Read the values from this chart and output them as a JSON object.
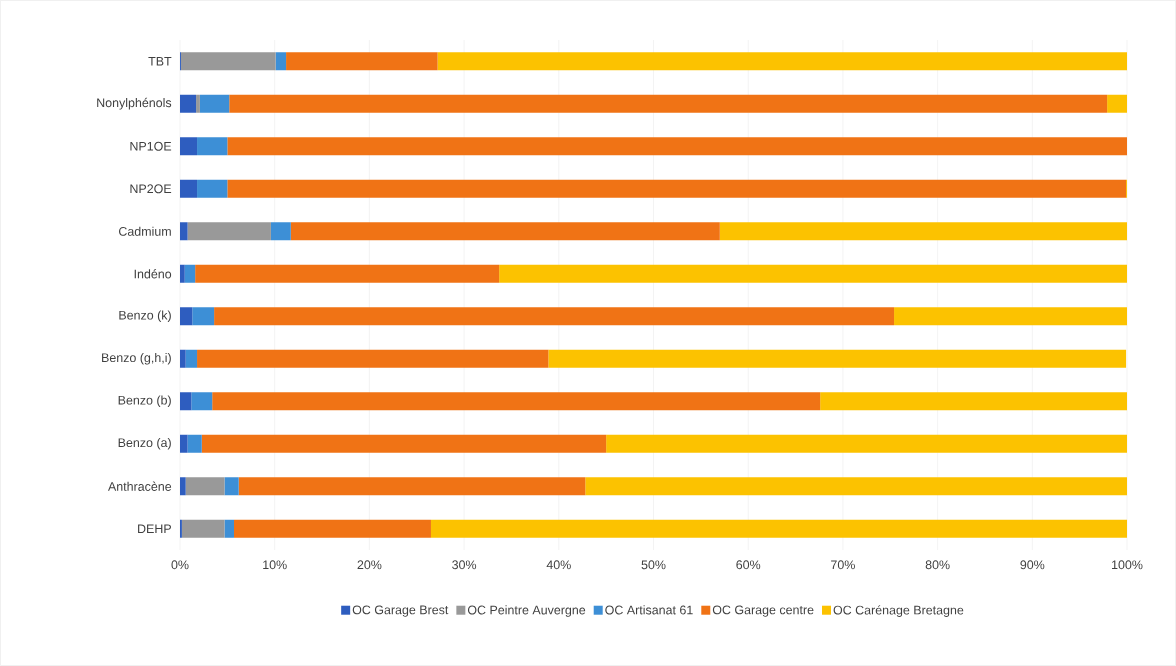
{
  "chart_data": {
    "type": "bar",
    "orientation": "horizontal",
    "stacked": true,
    "categories": [
      "TBT",
      "Nonylphénols",
      "NP1OE",
      "NP2OE",
      "Cadmium",
      "Indéno",
      "Benzo (k)",
      "Benzo (g,h,i)",
      "Benzo (b)",
      "Benzo (a)",
      "Anthracène",
      "DEHP"
    ],
    "series": [
      {
        "name": "OC Garage Brest",
        "color": "#2e5dbf",
        "values": [
          0.1,
          1.7,
          1.8,
          1.8,
          0.8,
          0.5,
          1.3,
          0.6,
          1.2,
          0.8,
          0.6,
          0.2
        ]
      },
      {
        "name": "OC Peintre Auvergne",
        "color": "#999999",
        "values": [
          10.0,
          0.4,
          0,
          0,
          8.8,
          0,
          0,
          0,
          0,
          0,
          4.1,
          4.5
        ]
      },
      {
        "name": "OC Artisanat 61",
        "color": "#3d8fd6",
        "values": [
          1.1,
          3.1,
          3.2,
          3.2,
          2.1,
          1.1,
          2.3,
          1.2,
          2.2,
          1.5,
          1.5,
          1.0
        ]
      },
      {
        "name": "OC Garage centre",
        "color": "#f07315",
        "values": [
          16.0,
          92.7,
          95.0,
          94.9,
          45.3,
          32.1,
          71.8,
          37.1,
          64.2,
          42.7,
          36.6,
          20.8
        ]
      },
      {
        "name": "OC Carénage Bretagne",
        "color": "#fcc200",
        "values": [
          72.8,
          2.1,
          0,
          0.1,
          43.0,
          66.3,
          24.6,
          61.0,
          32.4,
          55.0,
          57.2,
          73.5
        ]
      }
    ],
    "xlim": [
      0,
      100
    ],
    "xticks": [
      {
        "value": 0,
        "label": "0%"
      },
      {
        "value": 10,
        "label": "10%"
      },
      {
        "value": 20,
        "label": "20%"
      },
      {
        "value": 30,
        "label": "30%"
      },
      {
        "value": 40,
        "label": "40%"
      },
      {
        "value": 50,
        "label": "50%"
      },
      {
        "value": 60,
        "label": "60%"
      },
      {
        "value": 70,
        "label": "70%"
      },
      {
        "value": 80,
        "label": "80%"
      },
      {
        "value": 90,
        "label": "90%"
      },
      {
        "value": 100,
        "label": "100%"
      }
    ],
    "grid": "x",
    "legend": "bottom"
  }
}
